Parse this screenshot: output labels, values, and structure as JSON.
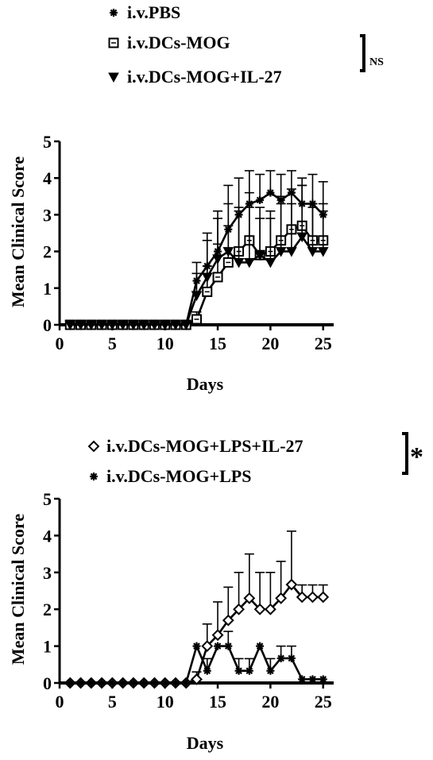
{
  "chart_data": [
    {
      "type": "line",
      "title": "",
      "xlabel": "Days",
      "ylabel": "Mean Clinical Score",
      "xlim": [
        0,
        26
      ],
      "ylim": [
        0,
        5
      ],
      "xticks": [
        0,
        5,
        10,
        15,
        20,
        25
      ],
      "yticks": [
        0,
        1,
        2,
        3,
        4,
        5
      ],
      "legend_position": "top",
      "significance": "NS",
      "x": [
        1,
        2,
        3,
        4,
        5,
        6,
        7,
        8,
        9,
        10,
        11,
        12,
        13,
        14,
        15,
        16,
        17,
        18,
        19,
        20,
        21,
        22,
        23,
        24,
        25
      ],
      "series": [
        {
          "name": "i.v.PBS",
          "marker": "asterisk",
          "values": [
            0,
            0,
            0,
            0,
            0,
            0,
            0,
            0,
            0,
            0,
            0,
            0,
            1.2,
            1.6,
            2.0,
            2.6,
            3.0,
            3.3,
            3.4,
            3.6,
            3.4,
            3.6,
            3.3,
            3.3,
            3.0
          ],
          "errors": [
            0,
            0,
            0,
            0,
            0,
            0,
            0,
            0,
            0,
            0,
            0,
            0,
            0.5,
            0.9,
            0.9,
            1.2,
            1.0,
            0.9,
            0.7,
            0.6,
            0.7,
            0.6,
            0.7,
            0.8,
            0.9
          ]
        },
        {
          "name": "i.v.DCs-MOG",
          "marker": "square",
          "values": [
            0,
            0,
            0,
            0,
            0,
            0,
            0,
            0,
            0,
            0,
            0,
            0,
            0.15,
            0.9,
            1.3,
            1.7,
            2.0,
            2.3,
            1.9,
            2.0,
            2.3,
            2.6,
            2.7,
            2.3,
            2.3
          ],
          "errors": [
            0,
            0,
            0,
            0,
            0,
            0,
            0,
            0,
            0,
            0,
            0,
            0,
            0.2,
            0.7,
            0.9,
            1.0,
            1.1,
            1.3,
            1.0,
            1.1,
            1.2,
            1.1,
            1.1,
            1.0,
            1.0
          ]
        },
        {
          "name": "i.v.DCs-MOG+IL-27",
          "marker": "triangle-down",
          "values": [
            0,
            0,
            0,
            0,
            0,
            0,
            0,
            0,
            0,
            0,
            0,
            0,
            0.8,
            1.3,
            1.8,
            2.0,
            1.7,
            1.7,
            1.9,
            1.7,
            2.0,
            2.0,
            2.4,
            2.0,
            2.0
          ],
          "errors": [
            0,
            0,
            0,
            0,
            0,
            0,
            0,
            0,
            0,
            0,
            0,
            0,
            0.6,
            1.0,
            1.3,
            1.3,
            1.5,
            1.5,
            1.3,
            1.2,
            1.3,
            1.3,
            1.4,
            1.2,
            1.1
          ]
        }
      ]
    },
    {
      "type": "line",
      "title": "",
      "xlabel": "Days",
      "ylabel": "Mean Clinical Score",
      "xlim": [
        0,
        26
      ],
      "ylim": [
        0,
        5
      ],
      "xticks": [
        0,
        5,
        10,
        15,
        20,
        25
      ],
      "yticks": [
        0,
        1,
        2,
        3,
        4,
        5
      ],
      "legend_position": "top",
      "significance": "*",
      "x": [
        1,
        2,
        3,
        4,
        5,
        6,
        7,
        8,
        9,
        10,
        11,
        12,
        13,
        14,
        15,
        16,
        17,
        18,
        19,
        20,
        21,
        22,
        23,
        24,
        25
      ],
      "series": [
        {
          "name": "i.v.DCs-MOG+LPS+IL-27",
          "marker": "diamond",
          "values": [
            0,
            0,
            0,
            0,
            0,
            0,
            0,
            0,
            0,
            0,
            0,
            0,
            0.1,
            1.0,
            1.3,
            1.7,
            2.0,
            2.3,
            2.0,
            2.0,
            2.3,
            2.67,
            2.33,
            2.33,
            2.33
          ],
          "errors": [
            0,
            0,
            0,
            0,
            0,
            0,
            0,
            0,
            0,
            0,
            0,
            0,
            0.2,
            0.6,
            0.9,
            0.9,
            1.0,
            1.2,
            1.0,
            1.0,
            1.0,
            1.45,
            0.33,
            0.33,
            0.33
          ]
        },
        {
          "name": "i.v.DCs-MOG+LPS",
          "marker": "asterisk",
          "values": [
            0,
            0,
            0,
            0,
            0,
            0,
            0,
            0,
            0,
            0,
            0,
            0,
            1.0,
            0.33,
            1.0,
            1.0,
            0.33,
            0.33,
            1.0,
            0.33,
            0.67,
            0.67,
            0.1,
            0.1,
            0.1
          ],
          "errors": [
            0,
            0,
            0,
            0,
            0,
            0,
            0,
            0,
            0,
            0,
            0,
            0,
            0,
            0.33,
            0,
            0.4,
            0.33,
            0.33,
            0,
            0.33,
            0.33,
            0.33,
            0,
            0,
            0
          ]
        }
      ]
    }
  ]
}
